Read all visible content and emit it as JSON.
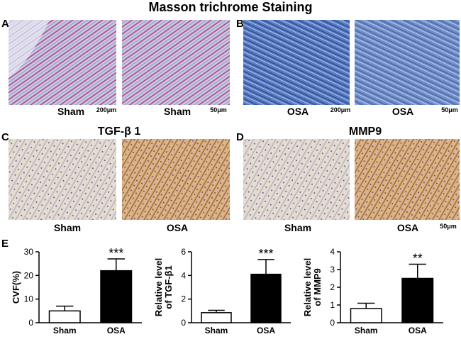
{
  "figure": {
    "title": "Masson trichrome Staining",
    "panels": [
      {
        "label": "A",
        "captions": [
          "Sham",
          "Sham"
        ],
        "scales": [
          "200μm",
          "50μm"
        ]
      },
      {
        "label": "B",
        "captions": [
          "OSA",
          "OSA"
        ],
        "scales": [
          "200μm",
          "50μm"
        ]
      },
      {
        "label": "C",
        "heading": "TGF-β 1",
        "captions": [
          "Sham",
          "OSA"
        ]
      },
      {
        "label": "D",
        "heading": "MMP9",
        "captions": [
          "Sham",
          "OSA"
        ],
        "scales": [
          "50μm"
        ]
      },
      {
        "label": "E"
      }
    ]
  },
  "chart_data": [
    {
      "type": "bar",
      "ylabel": [
        "CVF(%)"
      ],
      "categories": [
        "Sham",
        "OSA"
      ],
      "values": [
        5,
        22
      ],
      "errors": [
        2,
        5
      ],
      "colors": [
        "#ffffff",
        "#000000"
      ],
      "ylim": [
        0,
        30
      ],
      "yticks": [
        0,
        10,
        20,
        30
      ],
      "annotations": [
        null,
        "***"
      ]
    },
    {
      "type": "bar",
      "ylabel": [
        "Relative level",
        "of TGF-β1"
      ],
      "categories": [
        "Sham",
        "OSA"
      ],
      "values": [
        0.85,
        4.1
      ],
      "errors": [
        0.2,
        1.25
      ],
      "colors": [
        "#ffffff",
        "#000000"
      ],
      "ylim": [
        0,
        6
      ],
      "yticks": [
        0,
        2,
        4,
        6
      ],
      "annotations": [
        null,
        "***"
      ]
    },
    {
      "type": "bar",
      "ylabel": [
        "Relative level",
        "of MMP9"
      ],
      "categories": [
        "Sham",
        "OSA"
      ],
      "values": [
        0.8,
        2.5
      ],
      "errors": [
        0.3,
        0.8
      ],
      "colors": [
        "#ffffff",
        "#000000"
      ],
      "ylim": [
        0,
        4
      ],
      "yticks": [
        0,
        1,
        2,
        3,
        4
      ],
      "annotations": [
        null,
        "**"
      ]
    }
  ]
}
